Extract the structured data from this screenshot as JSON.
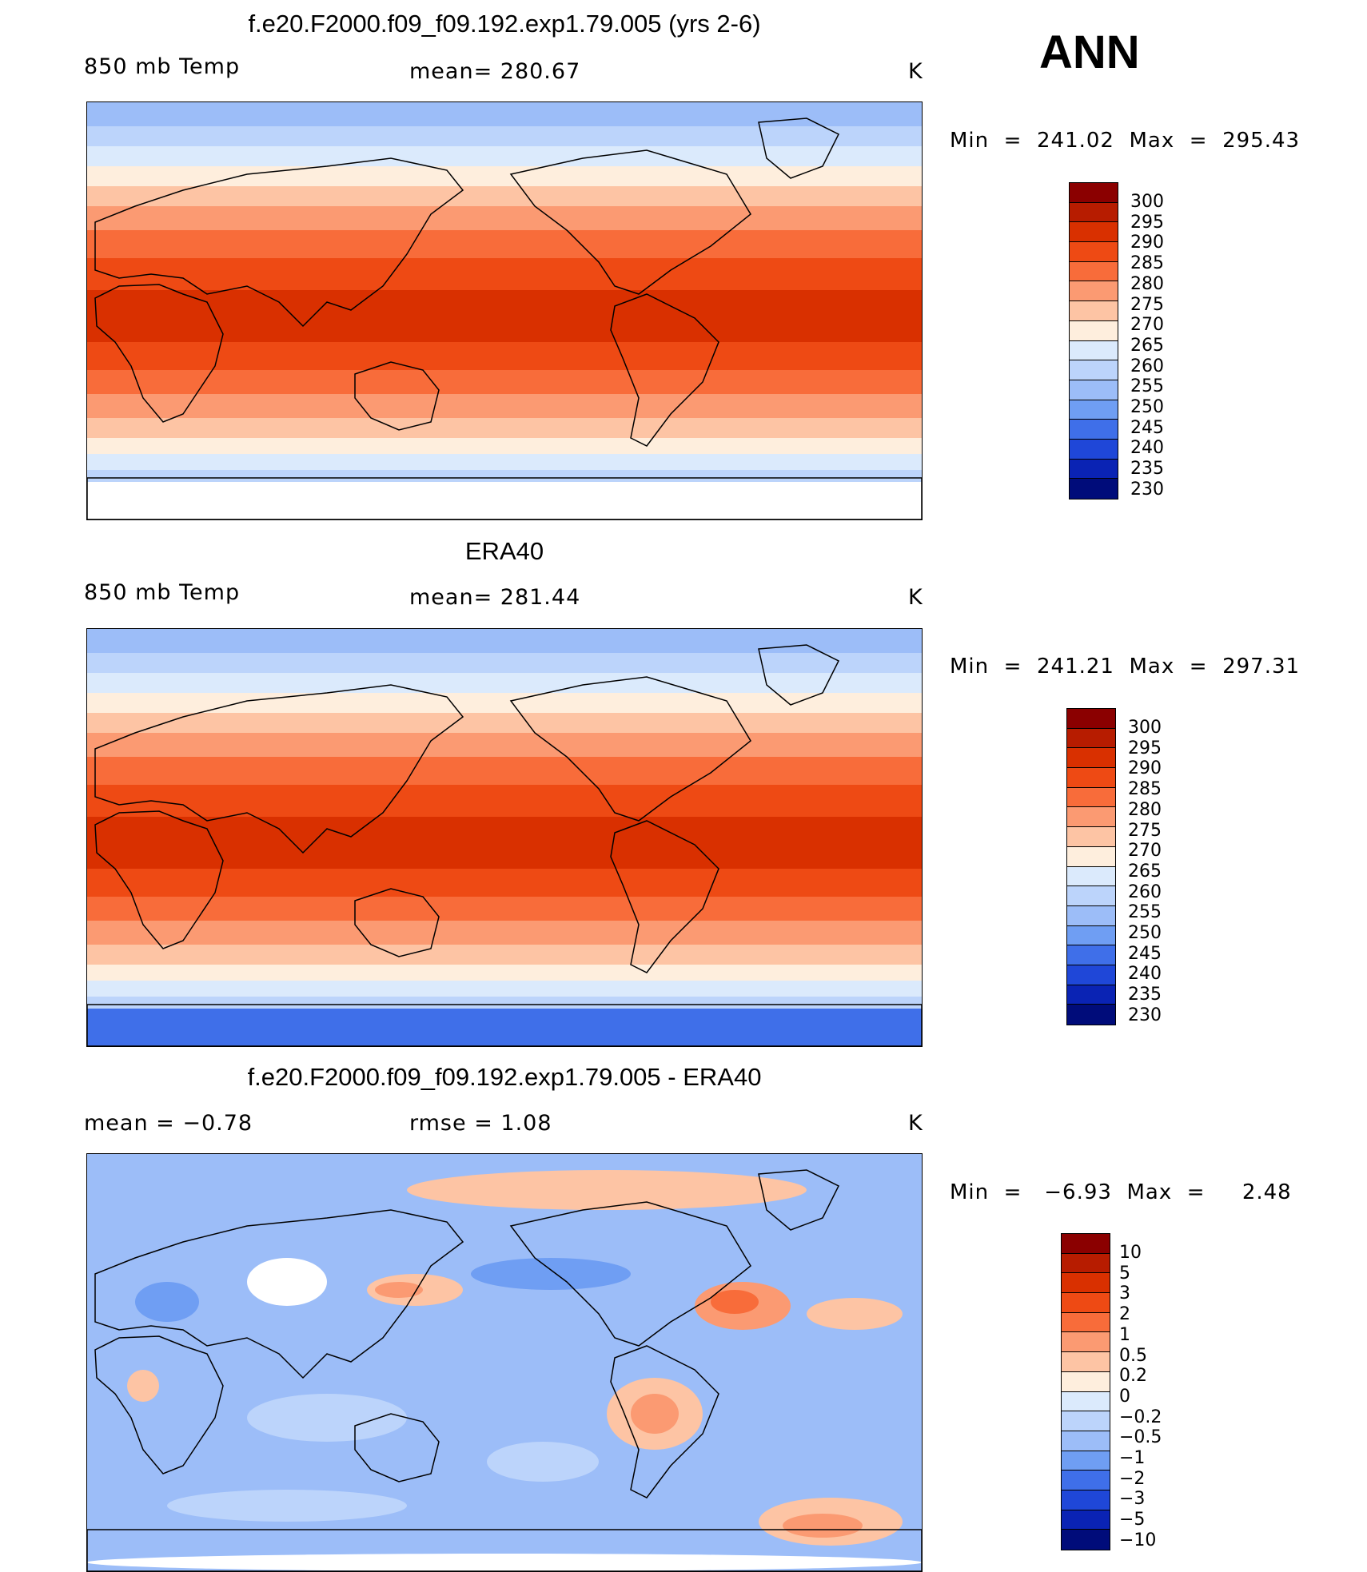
{
  "season_label": "ANN",
  "panels": [
    {
      "title": "f.e20.F2000.f09_f09.192.exp1.79.005 (yrs 2-6)",
      "left_label": "850 mb Temp",
      "center_label": "mean=  280.67",
      "units": "K",
      "minmax": "Min  =  241.02  Max  =  295.43",
      "colorbar": {
        "labels": [
          "300",
          "295",
          "290",
          "285",
          "280",
          "275",
          "270",
          "265",
          "260",
          "255",
          "250",
          "245",
          "240",
          "235",
          "230"
        ],
        "colors": [
          "#8b0000",
          "#b71c00",
          "#d93000",
          "#ee4a14",
          "#f86c3a",
          "#fb9a72",
          "#fdc4a4",
          "#feeedd",
          "#dbeafc",
          "#bcd4fb",
          "#9cbdf8",
          "#6f9ef3",
          "#3f6fe9",
          "#1f47d8",
          "#0a23b4",
          "#000c7a"
        ]
      },
      "map_colors": {
        "polar_cold": "#9cbdf8",
        "high_cold": "#bcd4fb",
        "mid_cool": "#dbeafc",
        "mid_mild": "#feeedd",
        "subtrop1": "#fdc4a4",
        "subtrop2": "#fb9a72",
        "subtrop3": "#f86c3a",
        "tropics": "#ee4a14",
        "tropics_core": "#d93000",
        "antarctic": "#ffffff"
      }
    },
    {
      "title": "ERA40",
      "left_label": "850 mb Temp",
      "center_label": "mean=  281.44",
      "units": "K",
      "minmax": "Min  =  241.21  Max  =  297.31",
      "colorbar": {
        "labels": [
          "300",
          "295",
          "290",
          "285",
          "280",
          "275",
          "270",
          "265",
          "260",
          "255",
          "250",
          "245",
          "240",
          "235",
          "230"
        ],
        "colors": [
          "#8b0000",
          "#b71c00",
          "#d93000",
          "#ee4a14",
          "#f86c3a",
          "#fb9a72",
          "#fdc4a4",
          "#feeedd",
          "#dbeafc",
          "#bcd4fb",
          "#9cbdf8",
          "#6f9ef3",
          "#3f6fe9",
          "#1f47d8",
          "#0a23b4",
          "#000c7a"
        ]
      },
      "map_colors": {
        "polar_cold": "#9cbdf8",
        "high_cold": "#bcd4fb",
        "mid_cool": "#dbeafc",
        "mid_mild": "#feeedd",
        "subtrop1": "#fdc4a4",
        "subtrop2": "#fb9a72",
        "subtrop3": "#f86c3a",
        "tropics": "#ee4a14",
        "tropics_core": "#d93000",
        "antarctic": "#3f6fe9"
      }
    },
    {
      "title": "f.e20.F2000.f09_f09.192.exp1.79.005 - ERA40",
      "left_label": "mean =    −0.78",
      "center_label": "rmse =     1.08",
      "units": "K",
      "minmax": "Min  =   −6.93  Max  =     2.48",
      "colorbar": {
        "labels": [
          "10",
          "5",
          "3",
          "2",
          "1",
          "0.5",
          "0.2",
          "0",
          "−0.2",
          "−0.5",
          "−1",
          "−2",
          "−3",
          "−5",
          "−10"
        ],
        "colors": [
          "#8b0000",
          "#b71c00",
          "#d93000",
          "#ee4a14",
          "#f86c3a",
          "#fb9a72",
          "#fdc4a4",
          "#feeedd",
          "#dbeafc",
          "#bcd4fb",
          "#9cbdf8",
          "#6f9ef3",
          "#3f6fe9",
          "#1f47d8",
          "#0a23b4",
          "#000c7a"
        ]
      },
      "map_colors": {
        "base": "#9cbdf8",
        "deep": "#6f9ef3",
        "light": "#bcd4fb",
        "warm1": "#fdc4a4",
        "warm2": "#fb9a72",
        "warm3": "#f86c3a",
        "neutral": "#feeedd"
      }
    }
  ]
}
